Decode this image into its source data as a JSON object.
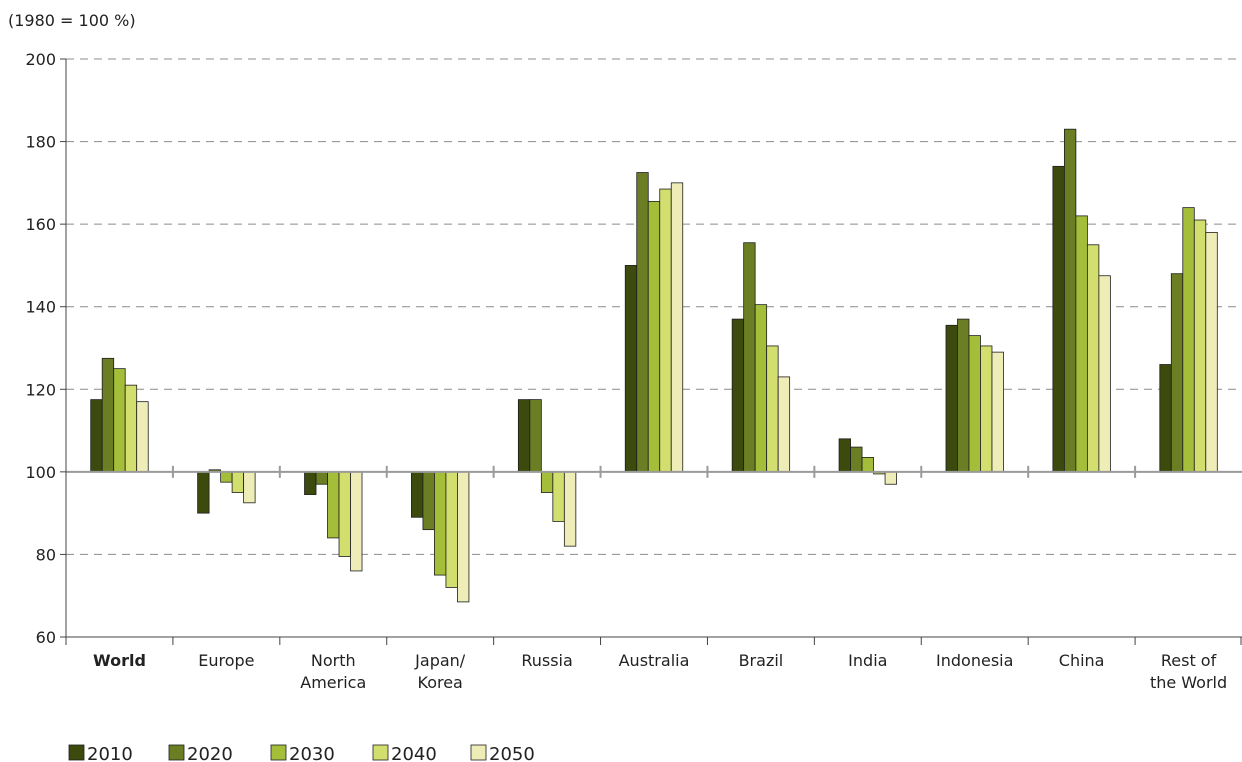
{
  "chart_data": {
    "type": "bar",
    "unit_label": "(1980 = 100 %)",
    "xlabel": "",
    "ylabel": "",
    "ylim": [
      60,
      200
    ],
    "yticks": [
      60,
      80,
      100,
      120,
      140,
      160,
      180,
      200
    ],
    "baseline": 100,
    "grid": "horizontal dashed",
    "legend_position": "bottom-left",
    "categories": [
      {
        "label": "World",
        "lines": [
          "World"
        ],
        "bold": true
      },
      {
        "label": "Europe",
        "lines": [
          "Europe"
        ]
      },
      {
        "label": "North America",
        "lines": [
          "North",
          "America"
        ]
      },
      {
        "label": "Japan/ Korea",
        "lines": [
          "Japan/",
          "Korea"
        ]
      },
      {
        "label": "Russia",
        "lines": [
          "Russia"
        ]
      },
      {
        "label": "Australia",
        "lines": [
          "Australia"
        ]
      },
      {
        "label": "Brazil",
        "lines": [
          "Brazil"
        ]
      },
      {
        "label": "India",
        "lines": [
          "India"
        ]
      },
      {
        "label": "Indonesia",
        "lines": [
          "Indonesia"
        ]
      },
      {
        "label": "China",
        "lines": [
          "China"
        ]
      },
      {
        "label": "Rest of the World",
        "lines": [
          "Rest of",
          "the World"
        ]
      }
    ],
    "series": [
      {
        "name": "2010",
        "color": "#3c4a0e",
        "values": [
          117.5,
          90,
          94.5,
          89,
          117.5,
          150,
          137,
          108,
          135.5,
          174,
          126
        ]
      },
      {
        "name": "2020",
        "color": "#6b7e24",
        "values": [
          127.5,
          100.5,
          97,
          86,
          117.5,
          172.5,
          155.5,
          106,
          137,
          183,
          148
        ]
      },
      {
        "name": "2030",
        "color": "#a5be3a",
        "values": [
          125,
          97.5,
          84,
          75,
          95,
          165.5,
          140.5,
          103.5,
          133,
          162,
          164
        ]
      },
      {
        "name": "2040",
        "color": "#d2de6d",
        "values": [
          121,
          95,
          79.5,
          72,
          88,
          168.5,
          130.5,
          99.5,
          130.5,
          155,
          161
        ]
      },
      {
        "name": "2050",
        "color": "#eeedb8",
        "values": [
          117,
          92.5,
          76,
          68.5,
          82,
          170,
          123,
          97,
          129,
          147.5,
          158
        ]
      }
    ]
  }
}
